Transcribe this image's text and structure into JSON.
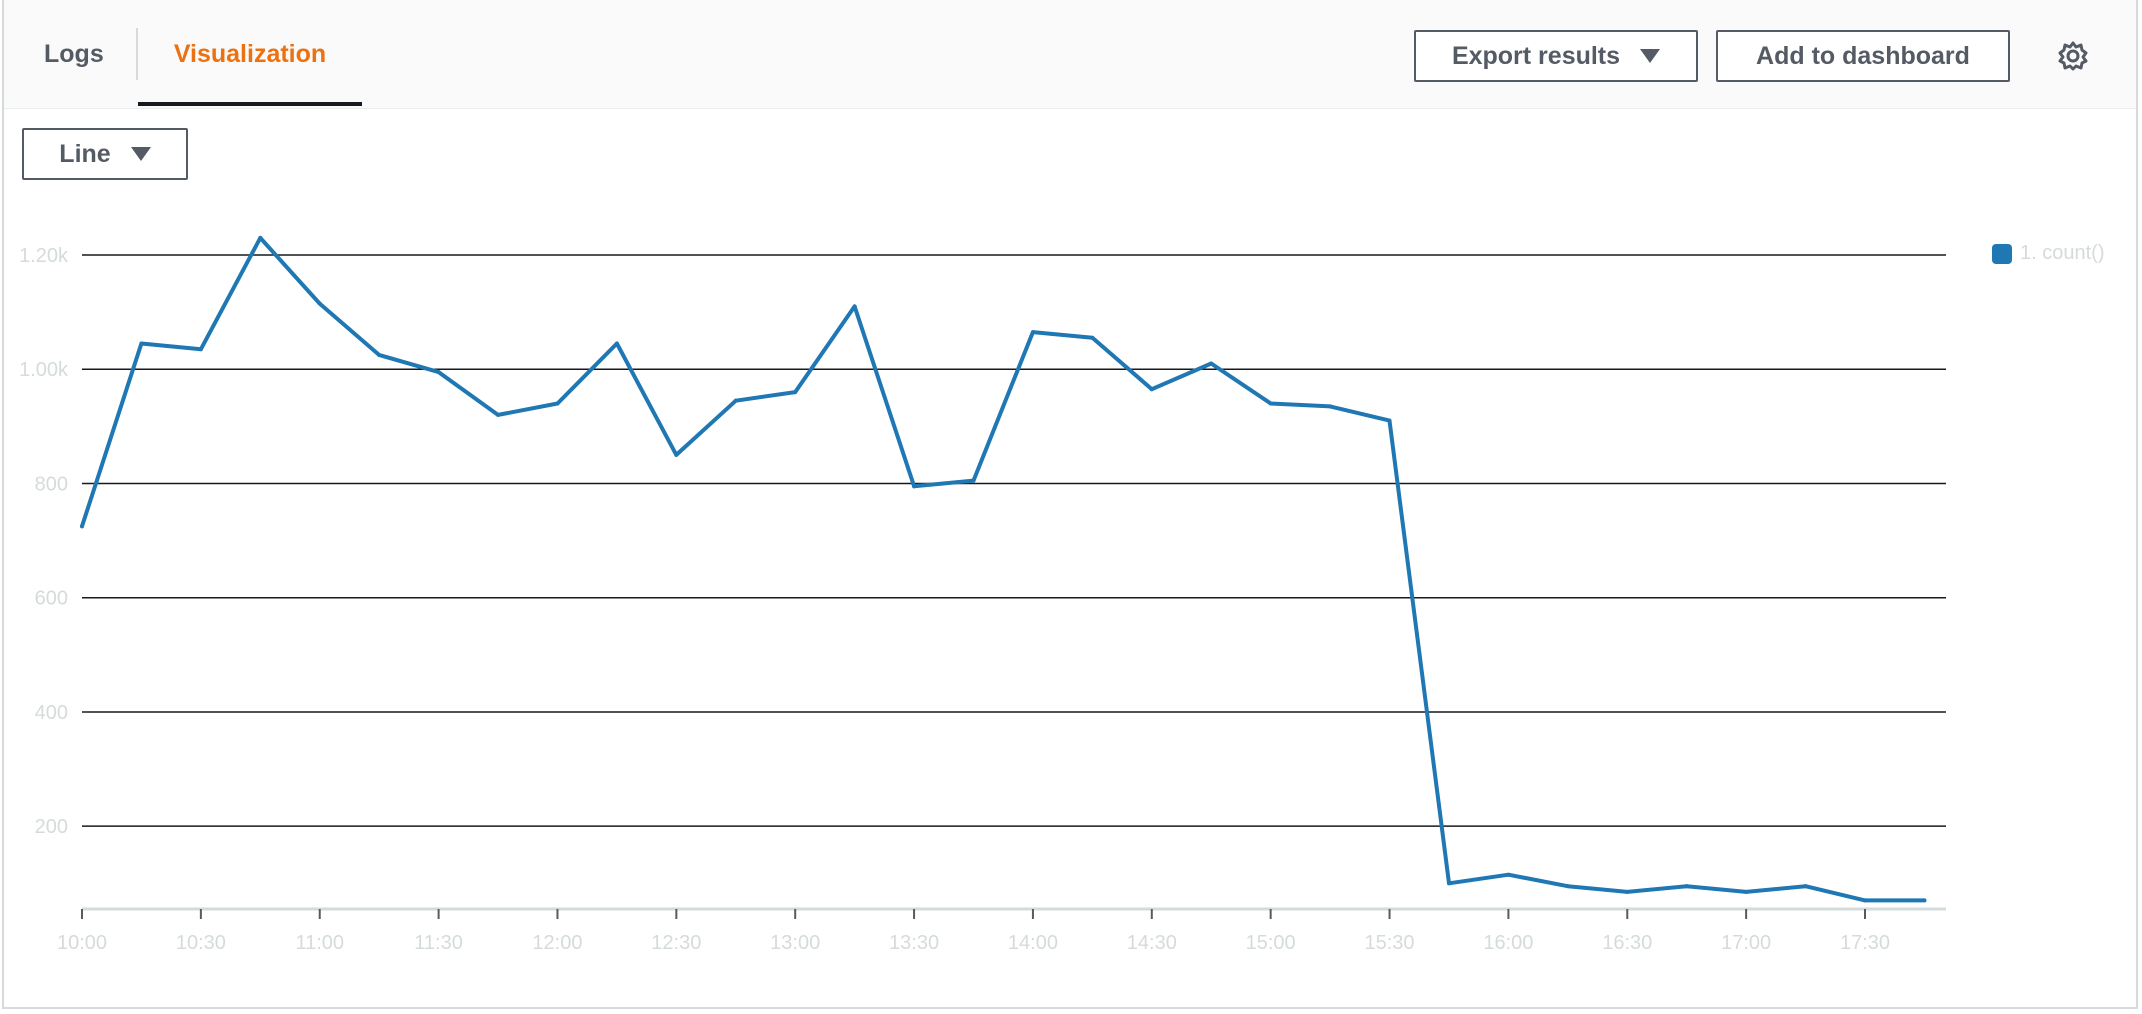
{
  "tabs": {
    "logs_label": "Logs",
    "visualization_label": "Visualization",
    "active": "Visualization"
  },
  "toolbar": {
    "export_label": "Export results",
    "add_dashboard_label": "Add to dashboard",
    "settings_icon": "gear-icon"
  },
  "chart_type_select": {
    "selected": "Line"
  },
  "colors": {
    "accent": "#ec7211",
    "series": "#1f77b4",
    "grid": "#16191f",
    "tick_label": "#d5dbdb"
  },
  "legend": {
    "label": "1. count()"
  },
  "chart_data": {
    "type": "line",
    "y_tick_labels": [
      "200",
      "400",
      "600",
      "800",
      "1.00k",
      "1.20k"
    ],
    "y_tick_values": [
      200,
      400,
      600,
      800,
      1000,
      1200
    ],
    "x_tick_labels": [
      "10:00",
      "10:30",
      "11:00",
      "11:30",
      "12:00",
      "12:30",
      "13:00",
      "13:30",
      "14:00",
      "14:30",
      "15:00",
      "15:30",
      "16:00",
      "16:30",
      "17:00",
      "17:30"
    ],
    "ylim": [
      55,
      1200
    ],
    "grid": true,
    "legend_position": "right",
    "series": [
      {
        "name": "1. count()",
        "x": [
          "10:00",
          "10:15",
          "10:30",
          "10:45",
          "11:00",
          "11:15",
          "11:30",
          "11:45",
          "12:00",
          "12:15",
          "12:30",
          "12:45",
          "13:00",
          "13:15",
          "13:30",
          "13:45",
          "14:00",
          "14:15",
          "14:30",
          "14:45",
          "15:00",
          "15:15",
          "15:30",
          "15:45",
          "16:00",
          "16:15",
          "16:30",
          "16:45",
          "17:00",
          "17:15",
          "17:30",
          "17:45"
        ],
        "values": [
          725,
          1045,
          1035,
          1230,
          1115,
          1025,
          995,
          920,
          940,
          1045,
          850,
          945,
          960,
          1110,
          795,
          805,
          1065,
          1055,
          965,
          1010,
          940,
          935,
          910,
          100,
          115,
          95,
          85,
          95,
          85,
          95,
          70,
          70
        ]
      }
    ]
  }
}
